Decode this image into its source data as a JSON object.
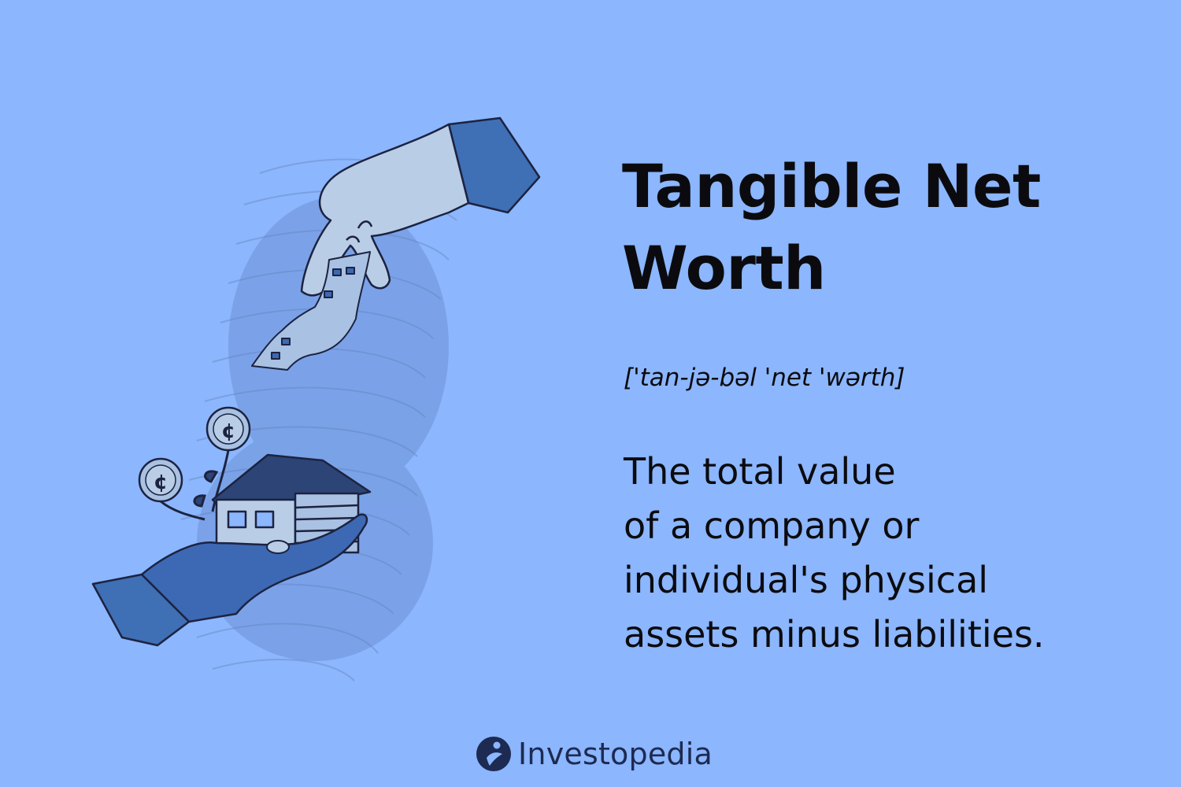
{
  "term": {
    "title": "Tangible Net Worth",
    "pronunciation": "['tan-jə-bəl 'net 'wərth]",
    "definition_lines": [
      "The total value",
      "of a company or",
      "individual's physical",
      "assets minus liabilities."
    ]
  },
  "brand": {
    "name": "Investopedia",
    "logo_icon": "investopedia-logo-icon"
  },
  "illustration": {
    "description_icon": "hands-exchanging-receipt-and-house-icon",
    "colors": {
      "background": "#8cb6fd",
      "hand_light": "#b9cde6",
      "hand_dark": "#3d68b4",
      "sleeve": "#3f6fb5",
      "outline": "#1c2340",
      "house_roof": "#2c4476",
      "coin": "#a9c1e3"
    }
  }
}
